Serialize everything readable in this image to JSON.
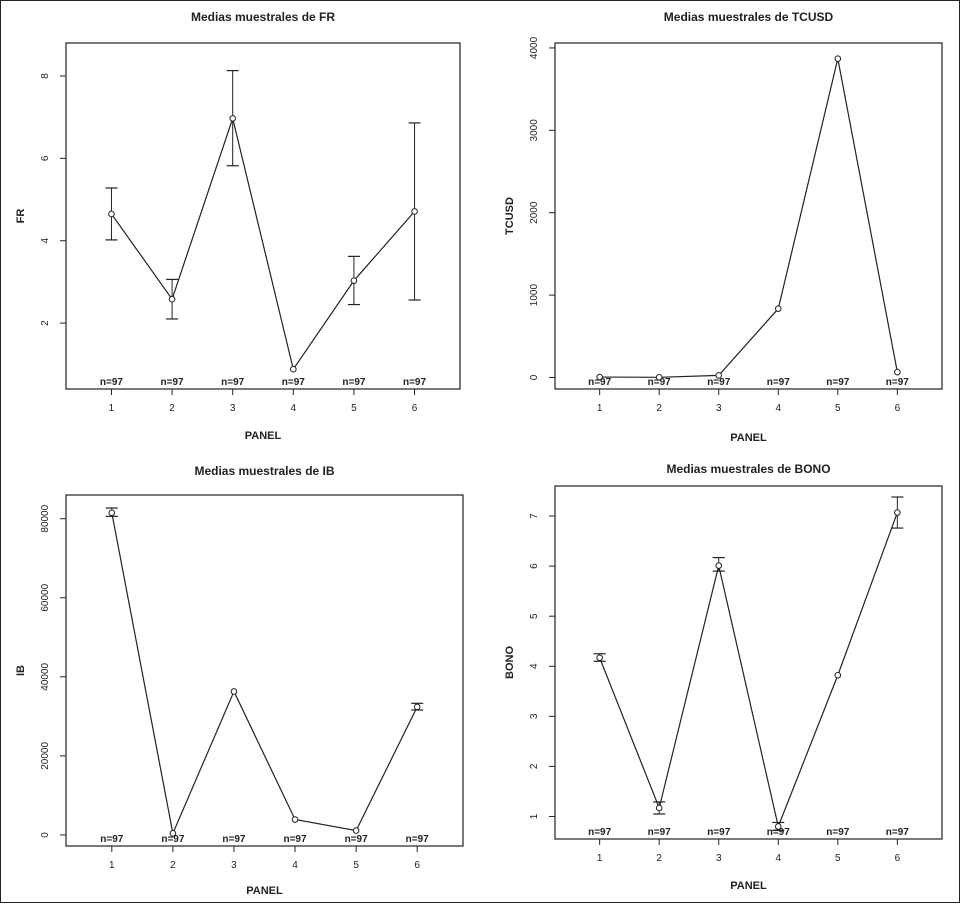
{
  "chart_data": [
    {
      "type": "line",
      "title": "Medias muestrales de FR",
      "xlabel": "PANEL",
      "ylabel": "FR",
      "categories": [
        "1",
        "2",
        "3",
        "4",
        "5",
        "6"
      ],
      "x": [
        1,
        2,
        3,
        4,
        5,
        6
      ],
      "xlim": [
        0.25,
        6.75
      ],
      "ylim": [
        0.4,
        8.8
      ],
      "yticks": [
        2,
        4,
        6,
        8
      ],
      "series": [
        {
          "values": [
            4.65,
            2.58,
            6.97,
            0.88,
            3.03,
            4.71
          ],
          "error_low": [
            4.02,
            2.1,
            5.82,
            0.82,
            2.45,
            2.56
          ],
          "error_high": [
            5.28,
            3.06,
            8.13,
            0.94,
            3.62,
            6.86
          ]
        }
      ],
      "n_labels": [
        "n=97",
        "n=97",
        "n=97",
        "n=97",
        "n=97",
        "n=97"
      ]
    },
    {
      "type": "line",
      "title": "Medias muestrales de TCUSD",
      "xlabel": "PANEL",
      "ylabel": "TCUSD",
      "categories": [
        "1",
        "2",
        "3",
        "4",
        "5",
        "6"
      ],
      "x": [
        1,
        2,
        3,
        4,
        5,
        6
      ],
      "xlim": [
        0.25,
        6.75
      ],
      "ylim": [
        -140,
        4060
      ],
      "yticks": [
        0,
        1000,
        2000,
        3000,
        4000
      ],
      "series": [
        {
          "values": [
            5,
            2,
            25,
            835,
            3870,
            65
          ],
          "error_low": [
            0,
            0,
            15,
            815,
            3850,
            55
          ],
          "error_high": [
            10,
            4,
            35,
            855,
            3890,
            75
          ]
        }
      ],
      "n_labels": [
        "n=97",
        "n=97",
        "n=97",
        "n=97",
        "n=97",
        "n=97"
      ]
    },
    {
      "type": "line",
      "title": "Medias muestrales de IB",
      "xlabel": "PANEL",
      "ylabel": "IB",
      "categories": [
        "1",
        "2",
        "3",
        "4",
        "5",
        "6"
      ],
      "x": [
        1,
        2,
        3,
        4,
        5,
        6
      ],
      "xlim": [
        0.25,
        6.75
      ],
      "ylim": [
        -2800,
        86000
      ],
      "yticks": [
        0,
        20000,
        40000,
        60000,
        80000
      ],
      "series": [
        {
          "values": [
            81500,
            400,
            36300,
            3900,
            1100,
            32400
          ],
          "error_low": [
            80600,
            0,
            35900,
            3600,
            900,
            31600
          ],
          "error_high": [
            82700,
            800,
            36800,
            4200,
            1300,
            33300
          ]
        }
      ],
      "n_labels": [
        "n=97",
        "n=97",
        "n=97",
        "n=97",
        "n=97",
        "n=97"
      ]
    },
    {
      "type": "line",
      "title": "Medias muestrales de BONO",
      "xlabel": "PANEL",
      "ylabel": "BONO",
      "categories": [
        "1",
        "2",
        "3",
        "4",
        "5",
        "6"
      ],
      "x": [
        1,
        2,
        3,
        4,
        5,
        6
      ],
      "xlim": [
        0.25,
        6.75
      ],
      "ylim": [
        0.55,
        7.6
      ],
      "yticks": [
        1,
        2,
        3,
        4,
        5,
        6,
        7
      ],
      "series": [
        {
          "values": [
            4.17,
            1.17,
            6.01,
            0.8,
            3.82,
            7.07
          ],
          "error_low": [
            4.1,
            1.05,
            5.9,
            0.72,
            3.77,
            6.76
          ],
          "error_high": [
            4.25,
            1.29,
            6.17,
            0.88,
            3.87,
            7.38
          ]
        }
      ],
      "n_labels": [
        "n=97",
        "n=97",
        "n=97",
        "n=97",
        "n=97",
        "n=97"
      ]
    }
  ]
}
